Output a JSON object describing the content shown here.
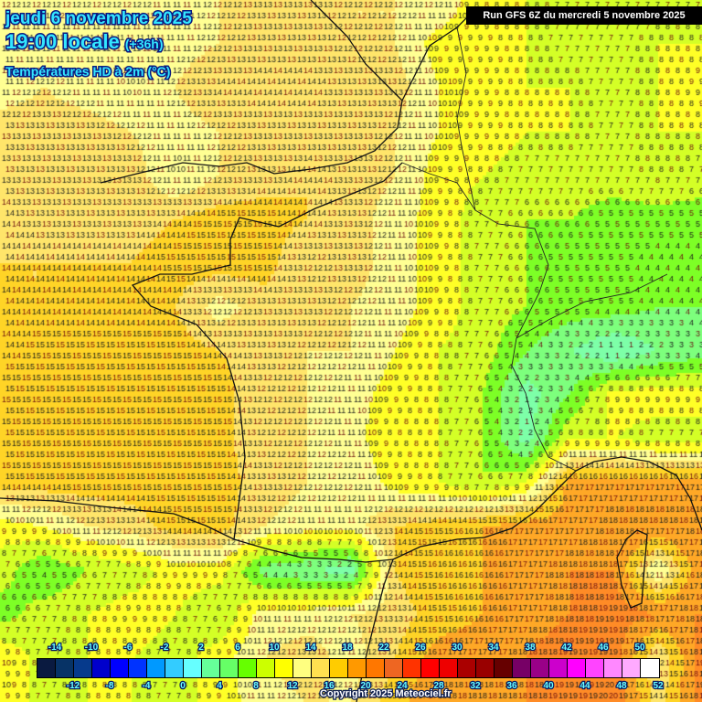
{
  "header": {
    "date": "jeudi 6 novembre 2025",
    "time": "19:00 locale",
    "lead": "(+36h)",
    "parameter": "Températures HD à 2m (°C)",
    "run": "Run GFS 6Z du mercredi 5 novembre 2025"
  },
  "footer": {
    "copyright": "Copyright 2025 Meteociel.fr"
  },
  "legend": {
    "colors": [
      "#0a1a40",
      "#073366",
      "#063a8c",
      "#0000cc",
      "#0000ff",
      "#0033ff",
      "#0099ff",
      "#33ccff",
      "#66ffff",
      "#66ff99",
      "#66ff66",
      "#66ff00",
      "#ccff00",
      "#ffff00",
      "#ffff80",
      "#ffe050",
      "#ffcc00",
      "#ff9900",
      "#ff7700",
      "#ee6622",
      "#ff3300",
      "#ff0000",
      "#ee0000",
      "#aa0000",
      "#990000",
      "#660000",
      "#770066",
      "#990088",
      "#cc00cc",
      "#ff00ff",
      "#ff44ff",
      "#ff88ff",
      "#ffaaff",
      "#ffffff"
    ],
    "top_labels": [
      "-14",
      "-10",
      "-6",
      "-2",
      "2",
      "6",
      "10",
      "14",
      "18",
      "22",
      "26",
      "30",
      "34",
      "38",
      "42",
      "46",
      "50"
    ],
    "bottom_labels": [
      "-12",
      "-8",
      "-4",
      "0",
      "4",
      "8",
      "12",
      "16",
      "20",
      "24",
      "28",
      "32",
      "36",
      "40",
      "44",
      "48",
      "52"
    ],
    "unit": "°C"
  },
  "temperature_field_celsius": [
    [
      12,
      12,
      12,
      12,
      11,
      12,
      13,
      13,
      12,
      12,
      12,
      8,
      8,
      7,
      7,
      7,
      7
    ],
    [
      11,
      11,
      11,
      11,
      11,
      12,
      13,
      13,
      12,
      12,
      9,
      9,
      8,
      7,
      7,
      8,
      8
    ],
    [
      11,
      12,
      11,
      10,
      12,
      14,
      14,
      14,
      13,
      13,
      10,
      9,
      8,
      8,
      7,
      8,
      9
    ],
    [
      13,
      13,
      13,
      12,
      11,
      12,
      13,
      13,
      13,
      12,
      10,
      9,
      8,
      8,
      7,
      8,
      8
    ],
    [
      13,
      13,
      13,
      13,
      10,
      12,
      13,
      14,
      13,
      12,
      9,
      8,
      7,
      7,
      7,
      8,
      7
    ],
    [
      14,
      13,
      13,
      13,
      14,
      15,
      15,
      14,
      13,
      11,
      9,
      7,
      6,
      6,
      5,
      5,
      5
    ],
    [
      14,
      14,
      14,
      14,
      15,
      15,
      15,
      12,
      13,
      11,
      9,
      7,
      6,
      5,
      5,
      4,
      4
    ],
    [
      14,
      14,
      14,
      14,
      14,
      11,
      13,
      13,
      12,
      11,
      9,
      7,
      6,
      5,
      5,
      4,
      4
    ],
    [
      14,
      15,
      15,
      15,
      15,
      14,
      13,
      12,
      12,
      10,
      8,
      7,
      4,
      2,
      0,
      2,
      3
    ],
    [
      15,
      15,
      15,
      15,
      15,
      15,
      12,
      12,
      11,
      9,
      8,
      6,
      1,
      4,
      9,
      9,
      9
    ],
    [
      15,
      15,
      15,
      15,
      15,
      15,
      12,
      12,
      11,
      8,
      8,
      6,
      1,
      8,
      8,
      7,
      7
    ],
    [
      15,
      15,
      15,
      15,
      15,
      15,
      13,
      12,
      12,
      9,
      8,
      6,
      8,
      17,
      17,
      17,
      17
    ],
    [
      9,
      10,
      12,
      13,
      15,
      15,
      12,
      11,
      11,
      14,
      15,
      16,
      17,
      17,
      18,
      18,
      18
    ],
    [
      7,
      4,
      6,
      7,
      9,
      9,
      3,
      2,
      1,
      14,
      16,
      16,
      17,
      18,
      18,
      10,
      18
    ],
    [
      5,
      7,
      8,
      9,
      8,
      6,
      11,
      11,
      12,
      13,
      15,
      16,
      17,
      18,
      19,
      18,
      18
    ],
    [
      10,
      7,
      8,
      8,
      7,
      9,
      12,
      13,
      11,
      14,
      17,
      17,
      18,
      19,
      19,
      12,
      19
    ],
    [
      10,
      7,
      8,
      8,
      7,
      9,
      11,
      12,
      12,
      15,
      18,
      18,
      18,
      19,
      20,
      13,
      19
    ]
  ]
}
